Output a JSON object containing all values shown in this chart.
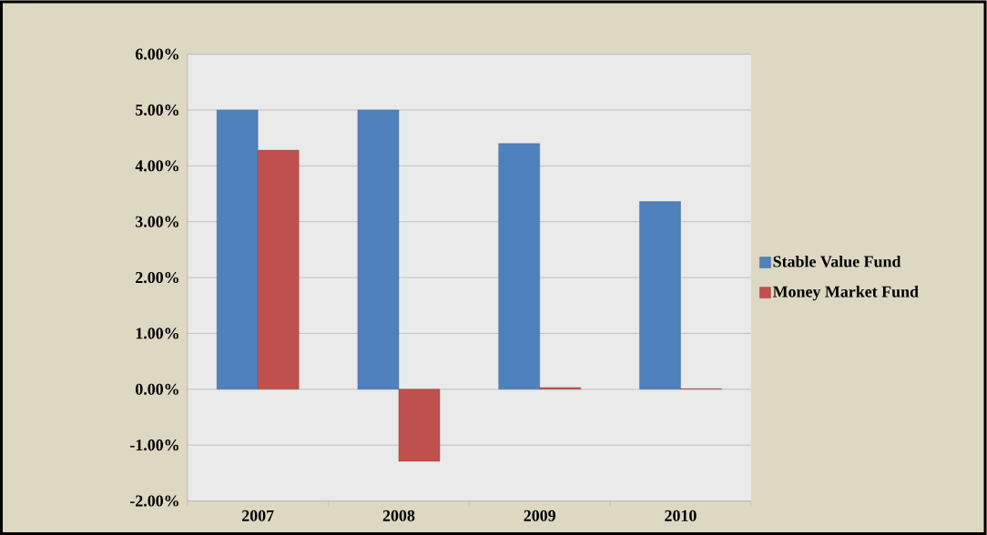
{
  "chart_data": {
    "type": "bar",
    "categories": [
      "2007",
      "2008",
      "2009",
      "2010"
    ],
    "series": [
      {
        "name": "Stable Value Fund",
        "color": "#4f81bd",
        "values": [
          5.0,
          5.0,
          4.4,
          3.36
        ]
      },
      {
        "name": "Money Market Fund",
        "color": "#c0504d",
        "values": [
          4.28,
          -1.29,
          0.03,
          0.01
        ]
      }
    ],
    "ylim": [
      -2,
      6
    ],
    "yticks": [
      {
        "value": -2,
        "label": "-2.00%"
      },
      {
        "value": -1,
        "label": "-1.00%"
      },
      {
        "value": 0,
        "label": "0.00%"
      },
      {
        "value": 1,
        "label": "1.00%"
      },
      {
        "value": 2,
        "label": "2.00%"
      },
      {
        "value": 3,
        "label": "3.00%"
      },
      {
        "value": 4,
        "label": "4.00%"
      },
      {
        "value": 5,
        "label": "5.00%"
      },
      {
        "value": 6,
        "label": "6.00%"
      }
    ],
    "grid": "y",
    "legend": "right"
  }
}
